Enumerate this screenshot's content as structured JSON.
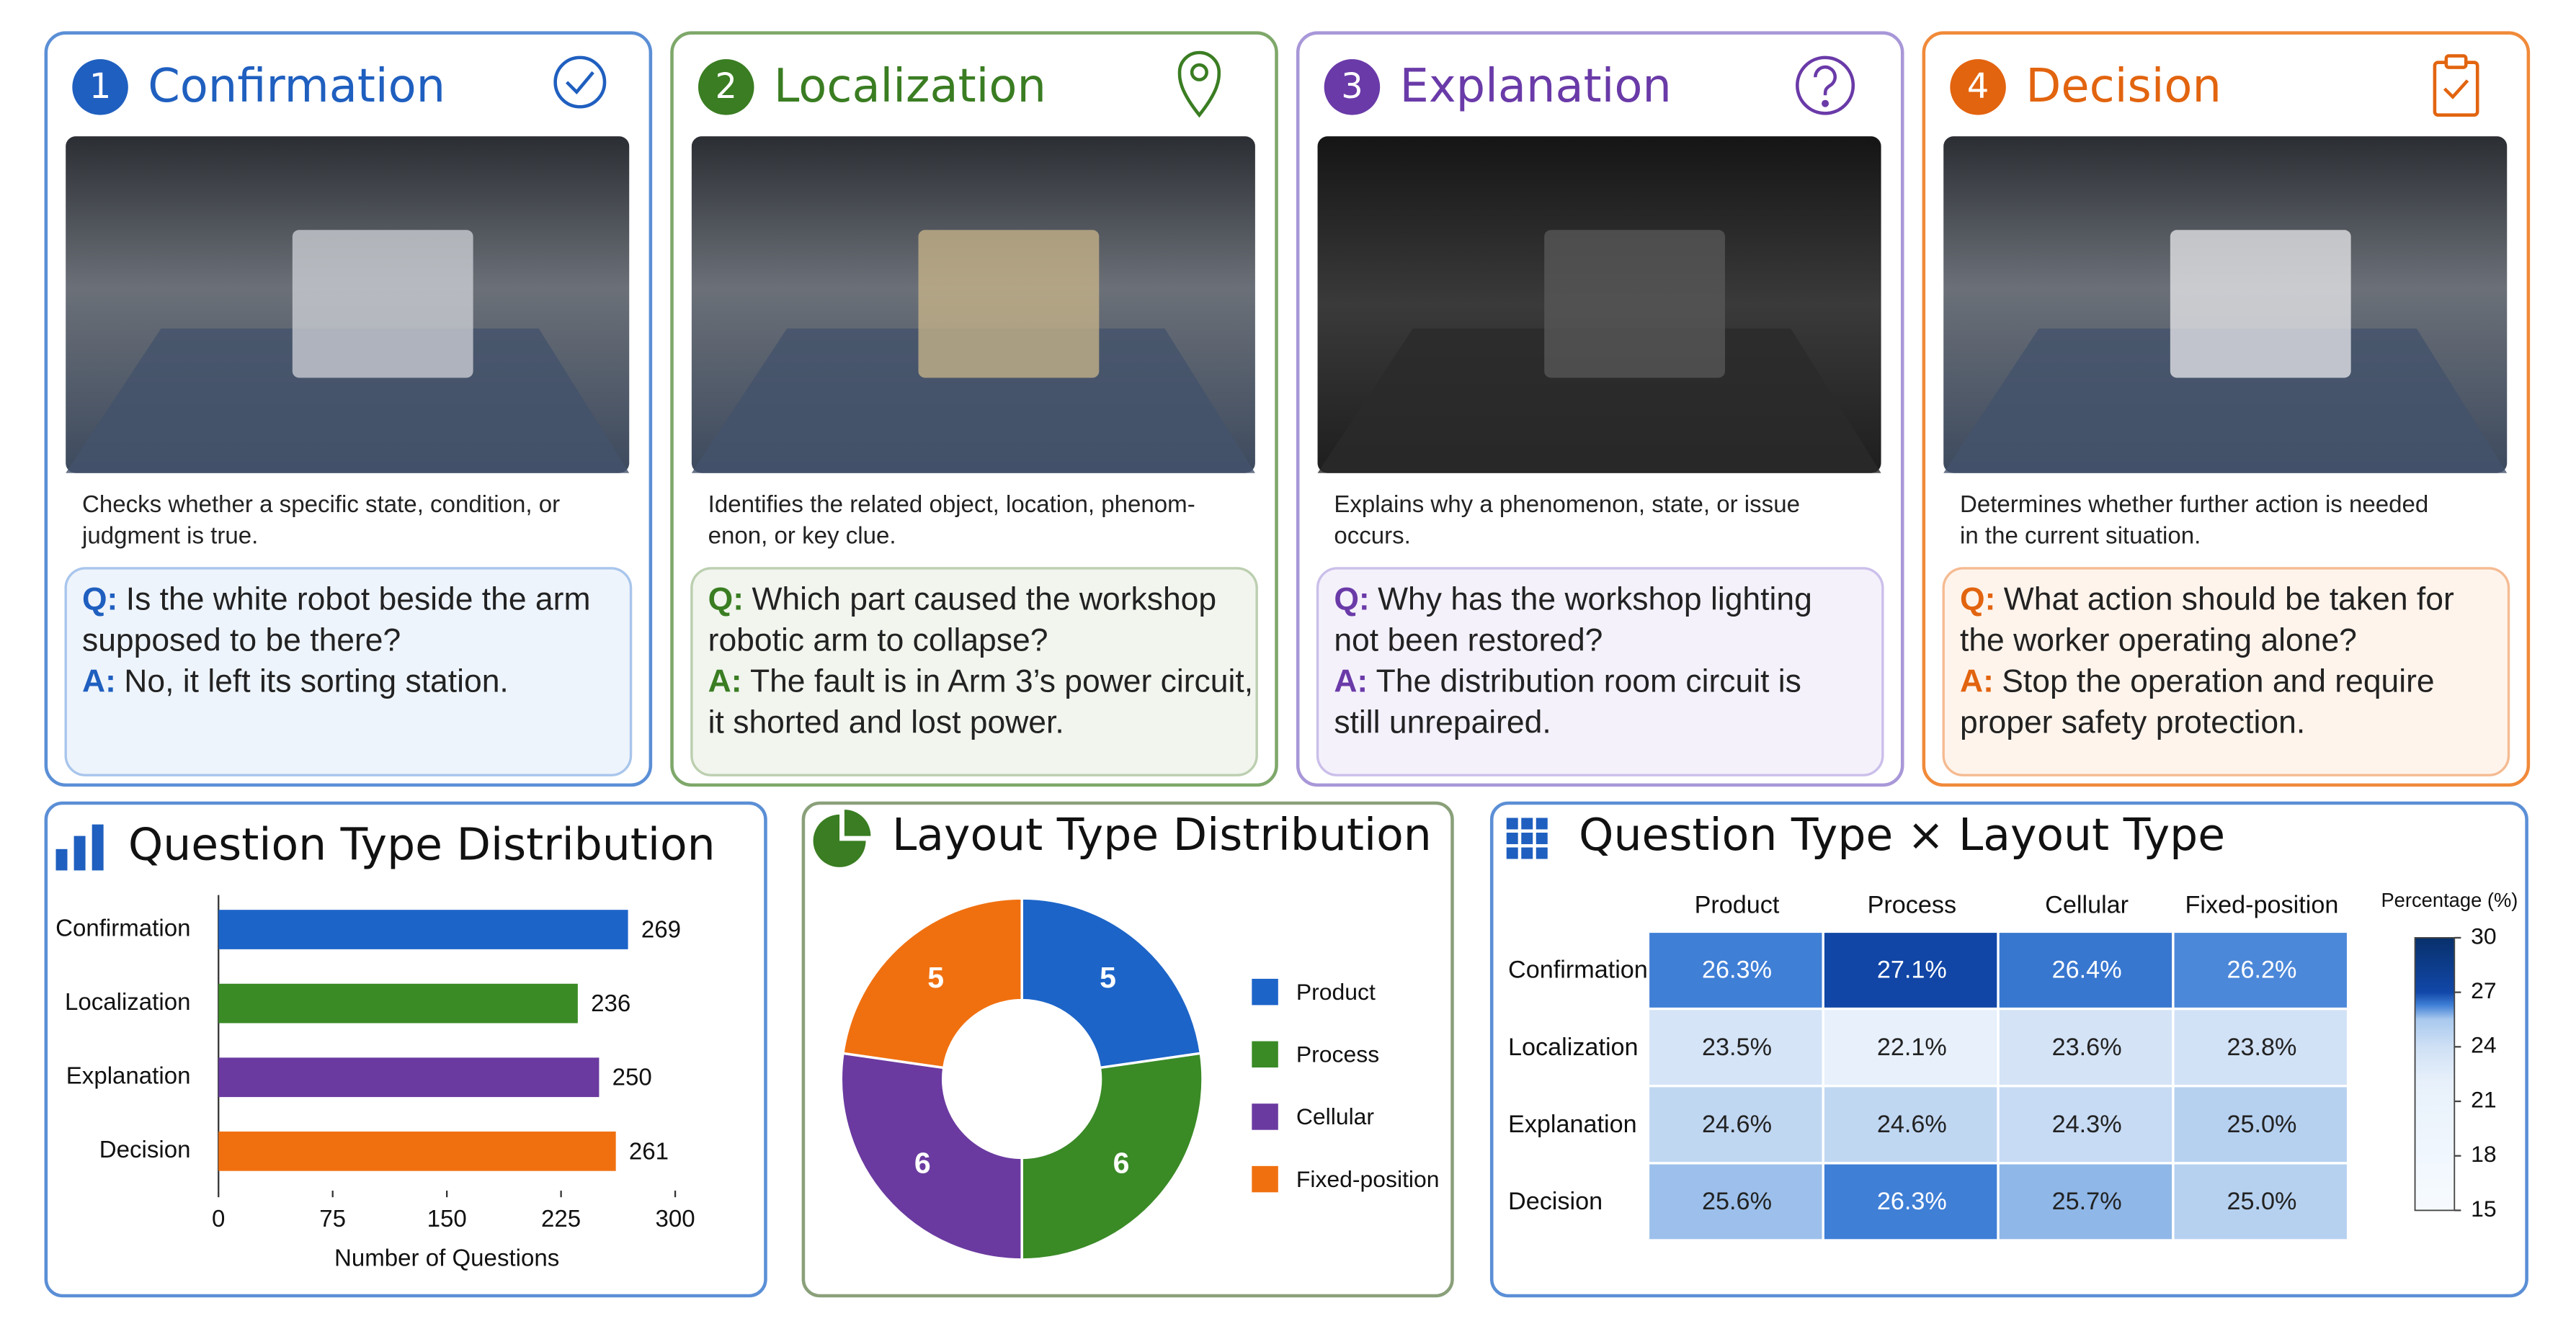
{
  "cards": [
    {
      "number": "1",
      "title": "Confirmation",
      "color": "#1f5fbf",
      "description_lines": [
        "Checks whether a specific state, condition, or",
        "judgment is true."
      ],
      "q_label": "Q:",
      "question_lines": [
        "Is the white robot beside the arm",
        "supposed to be there?"
      ],
      "a_label": "A:",
      "answer_lines": [
        "No, it left its sorting station."
      ]
    },
    {
      "number": "2",
      "title": "Localization",
      "color": "#3a7d22",
      "description_lines": [
        "Identifies the related object, location, phenom-",
        "enon, or key clue."
      ],
      "q_label": "Q:",
      "question_lines": [
        "Which part caused the workshop",
        "robotic arm to collapse?"
      ],
      "a_label": "A:",
      "answer_lines": [
        "The fault is in Arm 3’s power circuit,",
        "it shorted and lost power."
      ]
    },
    {
      "number": "3",
      "title": "Explanation",
      "color": "#6a3aa8",
      "description_lines": [
        "Explains why a phenomenon, state, or issue",
        "occurs."
      ],
      "q_label": "Q:",
      "question_lines": [
        "Why has the workshop lighting",
        "not been restored?"
      ],
      "a_label": "A:",
      "answer_lines": [
        "The distribution room circuit is",
        "still unrepaired."
      ]
    },
    {
      "number": "4",
      "title": "Decision",
      "color": "#e2640f",
      "description_lines": [
        "Determines whether further action is needed",
        "in the current situation."
      ],
      "q_label": "Q:",
      "question_lines": [
        "What action should be taken for",
        "the worker operating alone?"
      ],
      "a_label": "A:",
      "answer_lines": [
        "Stop the operation and require",
        "proper safety protection."
      ]
    }
  ],
  "chart_data": [
    {
      "type": "bar",
      "title": "Question Type Distribution",
      "categories": [
        "Confirmation",
        "Localization",
        "Explanation",
        "Decision"
      ],
      "values": [
        269,
        236,
        250,
        261
      ],
      "colors": [
        "#1c64c8",
        "#3a8a26",
        "#6a3aa0",
        "#f07010"
      ],
      "xlim": [
        0,
        300
      ],
      "xticks": [
        0,
        75,
        150,
        225,
        300
      ],
      "xlabel": "Number of Questions"
    },
    {
      "type": "pie",
      "title": "Layout Type Distribution",
      "categories": [
        "Product",
        "Process",
        "Cellular",
        "Fixed-position"
      ],
      "values": [
        5,
        6,
        6,
        5
      ],
      "colors": [
        "#1c64c8",
        "#3a8a26",
        "#6a3aa0",
        "#f07010"
      ]
    },
    {
      "type": "heatmap",
      "title": "Question Type × Layout Type",
      "x_categories": [
        "Product",
        "Process",
        "Cellular",
        "Fixed-position"
      ],
      "y_categories": [
        "Confirmation",
        "Localization",
        "Explanation",
        "Decision"
      ],
      "values": [
        [
          26.3,
          27.1,
          26.4,
          26.2
        ],
        [
          23.5,
          22.1,
          23.6,
          23.8
        ],
        [
          24.6,
          24.6,
          24.3,
          25.0
        ],
        [
          25.6,
          26.3,
          25.7,
          25.0
        ]
      ],
      "value_labels": [
        [
          "26.3%",
          "27.1%",
          "26.4%",
          "26.2%"
        ],
        [
          "23.5%",
          "22.1%",
          "23.6%",
          "23.8%"
        ],
        [
          "24.6%",
          "24.6%",
          "24.3%",
          "25.0%"
        ],
        [
          "25.6%",
          "26.3%",
          "25.7%",
          "25.0%"
        ]
      ],
      "colorbar_label": "Percentage (%)",
      "zlim": [
        15,
        30
      ],
      "zticks": [
        15,
        18,
        21,
        24,
        27,
        30
      ],
      "colormap": [
        [
          15,
          "#f7fbff"
        ],
        [
          22,
          "#e8f1fb"
        ],
        [
          24,
          "#cfe0f5"
        ],
        [
          25.5,
          "#a9c9ee"
        ],
        [
          26.3,
          "#3f7fd6"
        ],
        [
          27,
          "#1147a8"
        ],
        [
          30,
          "#08306b"
        ]
      ]
    }
  ]
}
